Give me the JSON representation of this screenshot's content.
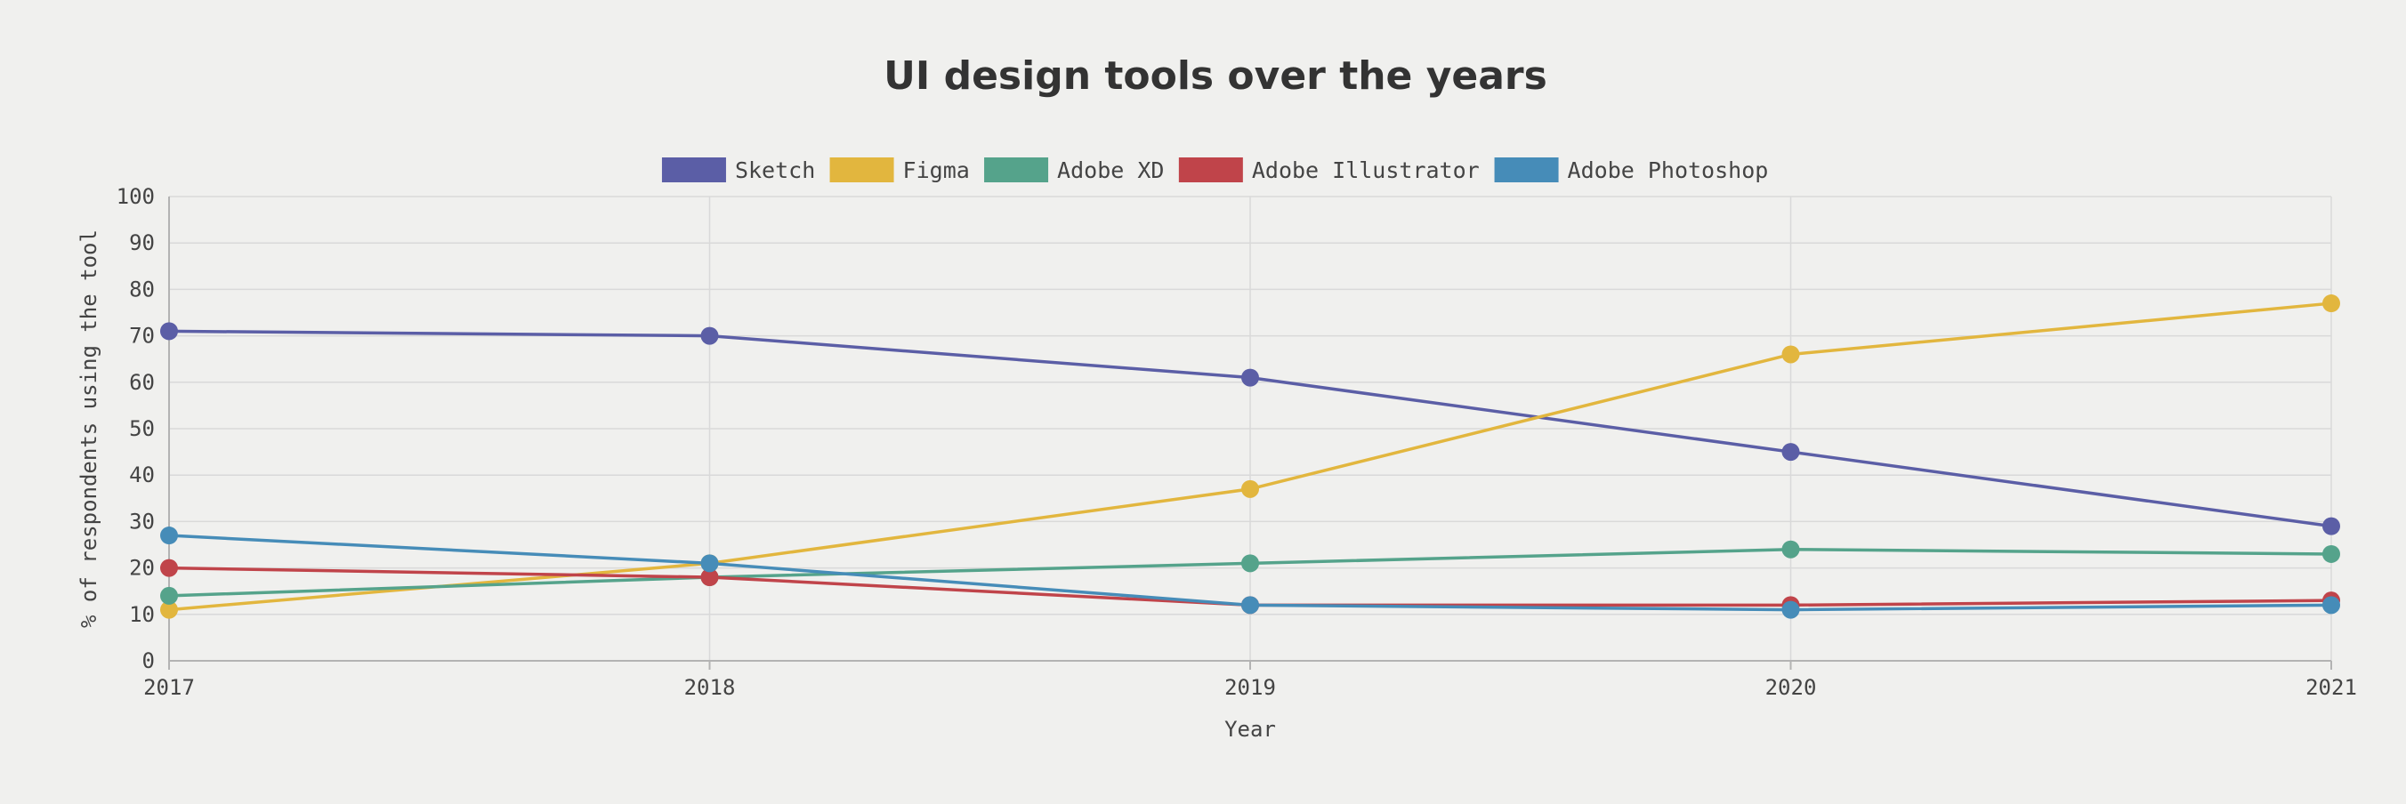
{
  "chart_data": {
    "type": "line",
    "title": "UI design tools over the years",
    "xlabel": "Year",
    "ylabel": "% of respondents using the tool",
    "categories": [
      "2017",
      "2018",
      "2019",
      "2020",
      "2021"
    ],
    "ylim": [
      0,
      100
    ],
    "yticks": [
      "0",
      "10",
      "20",
      "30",
      "40",
      "50",
      "60",
      "70",
      "80",
      "90",
      "100"
    ],
    "grid": true,
    "legend_position": "top-center",
    "series": [
      {
        "name": "Sketch",
        "color": "#5b5ea6",
        "values": [
          71,
          70,
          61,
          45,
          29
        ]
      },
      {
        "name": "Figma",
        "color": "#e2b63e",
        "values": [
          11,
          21,
          37,
          66,
          77
        ]
      },
      {
        "name": "Adobe XD",
        "color": "#55a38b",
        "values": [
          14,
          18,
          21,
          24,
          23
        ]
      },
      {
        "name": "Adobe Illustrator",
        "color": "#c0444a",
        "values": [
          20,
          18,
          12,
          12,
          13
        ]
      },
      {
        "name": "Adobe Photoshop",
        "color": "#468cb8",
        "values": [
          27,
          21,
          12,
          11,
          12
        ]
      }
    ]
  }
}
